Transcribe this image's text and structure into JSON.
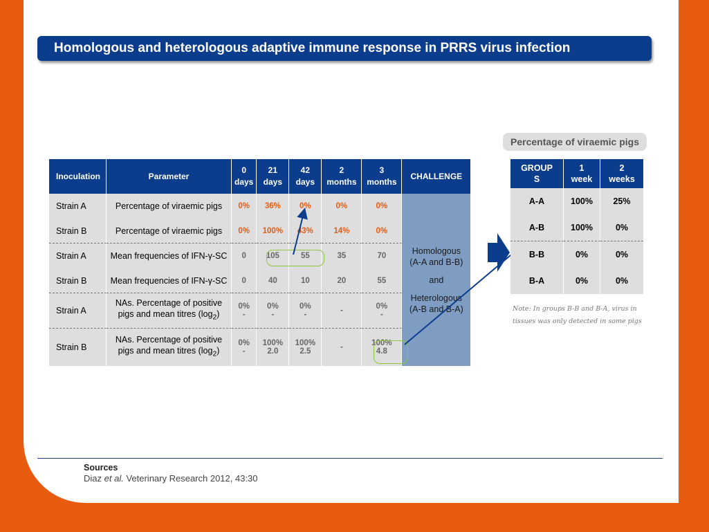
{
  "title": "Homologous and heterologous adaptive immune response in PRRS virus infection",
  "main_table": {
    "headers": {
      "inoculation": "Inoculation",
      "parameter": "Parameter",
      "d0a": "0",
      "d0b": "days",
      "d21a": "21",
      "d21b": "days",
      "d42a": "42",
      "d42b": "days",
      "m2a": "2",
      "m2b": "months",
      "m3a": "3",
      "m3b": "months",
      "challenge": "CHALLENGE"
    },
    "rows": [
      {
        "strain": "Strain A",
        "param": "Percentage of viraemic pigs",
        "v0": "0%",
        "v21": "36%",
        "v42": "0%",
        "v2m": "0%",
        "v3m": "0%"
      },
      {
        "strain": "Strain B",
        "param": "Percentage of viraemic pigs",
        "v0": "0%",
        "v21": "100%",
        "v42": "43%",
        "v2m": "14%",
        "v3m": "0%"
      },
      {
        "strain": "Strain A",
        "param": "Mean frequencies of IFN-γ-SC",
        "v0": "0",
        "v21": "105",
        "v42": "55",
        "v2m": "35",
        "v3m": "70"
      },
      {
        "strain": "Strain B",
        "param": "Mean frequencies of IFN-γ-SC",
        "v0": "0",
        "v21": "40",
        "v42": "10",
        "v2m": "20",
        "v3m": "55"
      },
      {
        "strain": "Strain A",
        "param1": "NAs. Percentage of positive",
        "param2": "pigs and mean titres (log",
        "sub": "2",
        "param3": ")",
        "v0a": "0%",
        "v0b": "-",
        "v21a": "0%",
        "v21b": "-",
        "v42a": "0%",
        "v42b": "-",
        "v2m": "-",
        "v3ma": "0%",
        "v3mb": "-"
      },
      {
        "strain": "Strain B",
        "param1": "NAs. Percentage of positive",
        "param2": "pigs and mean titres (log",
        "sub": "2",
        "param3": ")",
        "v0a": "0%",
        "v0b": "-",
        "v21a": "100%",
        "v21b": "2.0",
        "v42a": "100%",
        "v42b": "2.5",
        "v2m": "-",
        "v3ma": "100%",
        "v3mb": "4.8"
      }
    ],
    "challenge": {
      "line1": "Homologous",
      "line2": "(A-A and B-B)",
      "line3": "and",
      "line4": "Heterologous",
      "line5": "(A-B and B-A)"
    }
  },
  "viraemic": {
    "label": "Percentage of viraemic pigs",
    "headers": {
      "group1": "GROUP",
      "group2": "S",
      "w1a": "1",
      "w1b": "week",
      "w2a": "2",
      "w2b": "weeks"
    },
    "rows": [
      {
        "group": "A-A",
        "w1": "100%",
        "w2": "25%"
      },
      {
        "group": "A-B",
        "w1": "100%",
        "w2": "0%"
      },
      {
        "group": "B-B",
        "w1": "0%",
        "w2": "0%"
      },
      {
        "group": "B-A",
        "w1": "0%",
        "w2": "0%"
      }
    ]
  },
  "note": {
    "line1": "Note: In groups B-B and B-A, virus in",
    "line2": "tissues was only detected in some pigs"
  },
  "sources": {
    "heading": "Sources",
    "author": "Diaz",
    "etal": "et al.",
    "citation": "Veterinary Research 2012, 43:30"
  },
  "colors": {
    "orange": "#e85c12",
    "navy": "#0b3d8c",
    "green": "#8cc63f",
    "challenge_blue": "#7f9dc3"
  }
}
